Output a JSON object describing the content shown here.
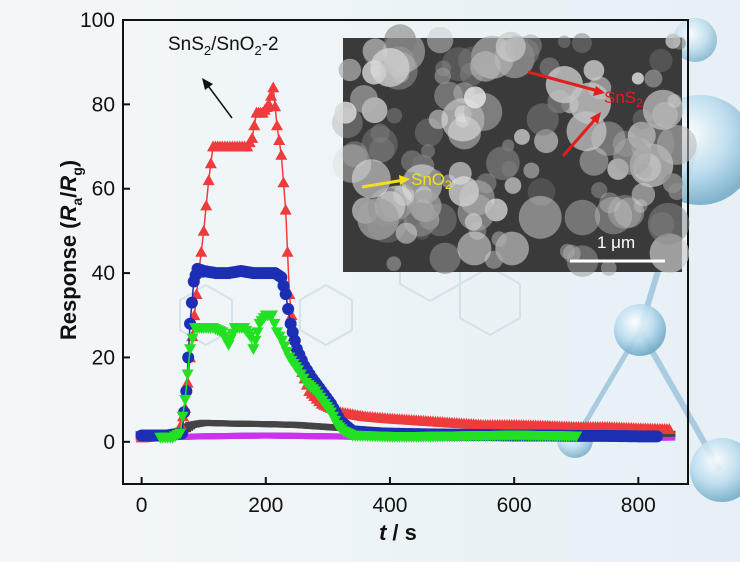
{
  "chart_data": {
    "type": "scatter",
    "xlabel_var": "t",
    "xlabel_unit": "/ s",
    "ylabel_prefix": "Response (",
    "ylabel_ra": "R",
    "ylabel_ra_sub": "a",
    "ylabel_slash": "/",
    "ylabel_rg": "R",
    "ylabel_rg_sub": "g",
    "ylabel_suffix": ")",
    "xlim": [
      -30,
      880
    ],
    "ylim": [
      -10,
      100
    ],
    "xticks": [
      0,
      200,
      400,
      600,
      800
    ],
    "yticks": [
      0,
      20,
      40,
      60,
      80,
      100
    ],
    "xtick_labels": [
      "0",
      "200",
      "400",
      "600",
      "800"
    ],
    "ytick_labels": [
      "0",
      "20",
      "40",
      "60",
      "80",
      "100"
    ],
    "annotation": {
      "base": "SnS",
      "sub1": "2",
      "mid": "/SnO",
      "sub2": "2",
      "tail": "-2"
    },
    "series": [
      {
        "color": "#ef3b3b",
        "marker": "triangle-up",
        "points": [
          [
            0,
            1
          ],
          [
            40,
            1.5
          ],
          [
            60,
            2
          ],
          [
            70,
            8
          ],
          [
            78,
            20
          ],
          [
            85,
            30
          ],
          [
            92,
            40
          ],
          [
            100,
            50
          ],
          [
            108,
            62
          ],
          [
            115,
            70
          ],
          [
            130,
            70
          ],
          [
            150,
            70
          ],
          [
            170,
            70
          ],
          [
            178,
            72
          ],
          [
            185,
            78
          ],
          [
            195,
            78
          ],
          [
            205,
            80
          ],
          [
            212,
            84
          ],
          [
            218,
            75
          ],
          [
            225,
            68
          ],
          [
            232,
            55
          ],
          [
            238,
            35
          ],
          [
            245,
            25
          ],
          [
            255,
            18
          ],
          [
            270,
            12
          ],
          [
            290,
            9
          ],
          [
            320,
            7
          ],
          [
            360,
            6
          ],
          [
            400,
            5.5
          ],
          [
            450,
            5
          ],
          [
            500,
            4.5
          ],
          [
            550,
            4
          ],
          [
            600,
            4
          ],
          [
            650,
            3.8
          ],
          [
            700,
            3.5
          ],
          [
            750,
            3.5
          ],
          [
            800,
            3.2
          ],
          [
            850,
            3
          ]
        ]
      },
      {
        "color": "#1c2fb4",
        "marker": "circle",
        "points": [
          [
            0,
            1.5
          ],
          [
            40,
            1.5
          ],
          [
            65,
            2
          ],
          [
            72,
            12
          ],
          [
            78,
            28
          ],
          [
            84,
            38
          ],
          [
            90,
            41
          ],
          [
            100,
            40.5
          ],
          [
            120,
            40
          ],
          [
            140,
            40
          ],
          [
            160,
            40.5
          ],
          [
            180,
            40
          ],
          [
            200,
            40
          ],
          [
            215,
            40
          ],
          [
            225,
            39
          ],
          [
            232,
            35
          ],
          [
            240,
            28
          ],
          [
            250,
            22
          ],
          [
            262,
            18
          ],
          [
            275,
            15
          ],
          [
            290,
            12
          ],
          [
            305,
            9
          ],
          [
            320,
            5
          ],
          [
            340,
            2.5
          ],
          [
            380,
            2
          ],
          [
            450,
            1.8
          ],
          [
            500,
            1.7
          ],
          [
            550,
            1.6
          ],
          [
            600,
            1.5
          ],
          [
            650,
            1.5
          ],
          [
            700,
            1.4
          ],
          [
            750,
            1.4
          ],
          [
            800,
            1.3
          ],
          [
            830,
            1.3
          ]
        ]
      },
      {
        "color": "#22e022",
        "marker": "triangle-down",
        "points": [
          [
            30,
            1
          ],
          [
            50,
            1
          ],
          [
            62,
            2
          ],
          [
            70,
            10
          ],
          [
            78,
            22
          ],
          [
            86,
            27
          ],
          [
            100,
            27
          ],
          [
            115,
            27
          ],
          [
            130,
            26
          ],
          [
            140,
            23
          ],
          [
            150,
            27
          ],
          [
            165,
            27
          ],
          [
            175,
            25
          ],
          [
            180,
            22
          ],
          [
            190,
            28
          ],
          [
            200,
            30
          ],
          [
            210,
            30
          ],
          [
            218,
            26
          ],
          [
            226,
            24
          ],
          [
            238,
            20
          ],
          [
            252,
            17
          ],
          [
            265,
            14
          ],
          [
            280,
            12
          ],
          [
            295,
            9
          ],
          [
            305,
            7
          ],
          [
            315,
            4
          ],
          [
            325,
            2.5
          ],
          [
            340,
            1.5
          ],
          [
            400,
            1.2
          ],
          [
            450,
            1.2
          ],
          [
            500,
            1.3
          ],
          [
            550,
            1.4
          ],
          [
            600,
            1.5
          ],
          [
            650,
            1.4
          ],
          [
            700,
            1.3
          ]
        ]
      },
      {
        "color": "#444444",
        "marker": "square",
        "points": [
          [
            0,
            1.8
          ],
          [
            50,
            2
          ],
          [
            70,
            3
          ],
          [
            80,
            4
          ],
          [
            100,
            4.5
          ],
          [
            150,
            4.3
          ],
          [
            200,
            4.2
          ],
          [
            250,
            4
          ],
          [
            300,
            3.5
          ],
          [
            350,
            3
          ],
          [
            400,
            2.5
          ],
          [
            500,
            2.2
          ],
          [
            600,
            2
          ],
          [
            700,
            2
          ],
          [
            800,
            1.9
          ],
          [
            850,
            1.9
          ]
        ]
      },
      {
        "color": "#cc33ee",
        "marker": "square",
        "points": [
          [
            0,
            1
          ],
          [
            100,
            1.3
          ],
          [
            200,
            1.5
          ],
          [
            300,
            1.3
          ],
          [
            400,
            1.1
          ],
          [
            500,
            1
          ],
          [
            600,
            1
          ],
          [
            700,
            1
          ],
          [
            800,
            1
          ],
          [
            850,
            1
          ]
        ]
      }
    ]
  },
  "inset": {
    "label_sns2": "SnS",
    "label_sns2_sub": "2",
    "label_sno2": "SnO",
    "label_sno2_sub": "2",
    "scale_bar": "1 μm",
    "colors": {
      "sns2": "#e01e1e",
      "sno2": "#f3e01a",
      "scale": "#ffffff"
    }
  }
}
